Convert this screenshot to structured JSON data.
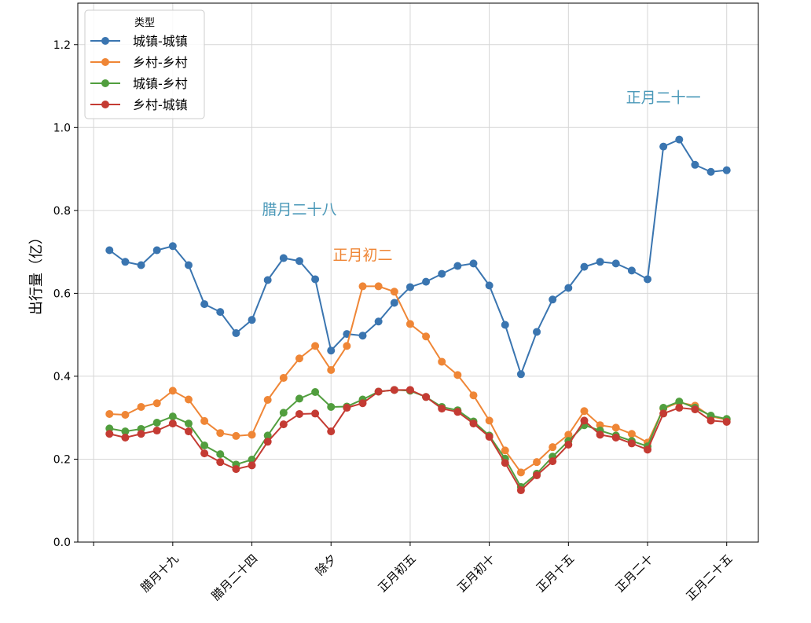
{
  "chart_data": {
    "type": "line",
    "title": "",
    "xlabel": "",
    "ylabel": "出行量（亿）",
    "ylim": [
      0,
      1.3
    ],
    "xlim": [
      -2,
      41
    ],
    "grid": true,
    "yticks": [
      0.0,
      0.2,
      0.4,
      0.6,
      0.8,
      1.0,
      1.2
    ],
    "ytick_labels": [
      "0.0",
      "0.2",
      "0.4",
      "0.6",
      "0.8",
      "1.0",
      "1.2"
    ],
    "xticks": [
      -1,
      4,
      9,
      14,
      19,
      24,
      29,
      34,
      39
    ],
    "xtick_labels": [
      "",
      "腊月十九",
      "腊月二十四",
      "除夕",
      "正月初五",
      "正月初十",
      "正月十五",
      "正月二十",
      "正月二十五"
    ],
    "legend": {
      "title": "类型",
      "placement": "top-left"
    },
    "series": [
      {
        "name": "城镇-城镇",
        "color": "#3a75b0",
        "values": [
          0.704,
          0.676,
          0.668,
          0.704,
          0.714,
          0.668,
          0.574,
          0.555,
          0.504,
          0.536,
          0.632,
          0.685,
          0.678,
          0.634,
          0.462,
          0.502,
          0.498,
          0.532,
          0.577,
          0.615,
          0.628,
          0.647,
          0.666,
          0.672,
          0.619,
          0.524,
          0.405,
          0.507,
          0.585,
          0.613,
          0.664,
          0.676,
          0.672,
          0.655,
          0.634,
          0.954,
          0.971,
          0.91,
          0.893,
          0.897
        ]
      },
      {
        "name": "乡村-乡村",
        "color": "#ef8636",
        "values": [
          0.309,
          0.307,
          0.326,
          0.335,
          0.365,
          0.344,
          0.292,
          0.263,
          0.256,
          0.259,
          0.343,
          0.396,
          0.443,
          0.473,
          0.415,
          0.473,
          0.617,
          0.617,
          0.604,
          0.526,
          0.496,
          0.435,
          0.403,
          0.354,
          0.293,
          0.221,
          0.168,
          0.193,
          0.229,
          0.259,
          0.316,
          0.282,
          0.276,
          0.261,
          0.24,
          0.322,
          0.337,
          0.329,
          0.303,
          0.295
        ]
      },
      {
        "name": "城镇-乡村",
        "color": "#519e3e",
        "values": [
          0.274,
          0.267,
          0.273,
          0.288,
          0.303,
          0.286,
          0.233,
          0.212,
          0.187,
          0.199,
          0.257,
          0.312,
          0.346,
          0.362,
          0.326,
          0.327,
          0.344,
          0.363,
          0.367,
          0.365,
          0.35,
          0.326,
          0.318,
          0.291,
          0.257,
          0.201,
          0.133,
          0.165,
          0.206,
          0.244,
          0.282,
          0.269,
          0.257,
          0.244,
          0.231,
          0.324,
          0.339,
          0.324,
          0.305,
          0.297
        ]
      },
      {
        "name": "乡村-城镇",
        "color": "#c43b33",
        "values": [
          0.261,
          0.252,
          0.261,
          0.269,
          0.286,
          0.267,
          0.214,
          0.193,
          0.176,
          0.185,
          0.242,
          0.284,
          0.309,
          0.31,
          0.267,
          0.324,
          0.335,
          0.363,
          0.367,
          0.367,
          0.35,
          0.322,
          0.314,
          0.286,
          0.254,
          0.191,
          0.125,
          0.161,
          0.195,
          0.235,
          0.293,
          0.259,
          0.252,
          0.238,
          0.223,
          0.31,
          0.324,
          0.32,
          0.293,
          0.29
        ]
      }
    ],
    "annotations": [
      {
        "text": "腊月二十八",
        "x": 12,
        "y": 0.79,
        "color": "#4a98b8"
      },
      {
        "text": "正月初二",
        "x": 16,
        "y": 0.68,
        "color": "#ef8636"
      },
      {
        "text": "正月二十一",
        "x": 35,
        "y": 1.06,
        "color": "#4a98b8"
      }
    ]
  }
}
